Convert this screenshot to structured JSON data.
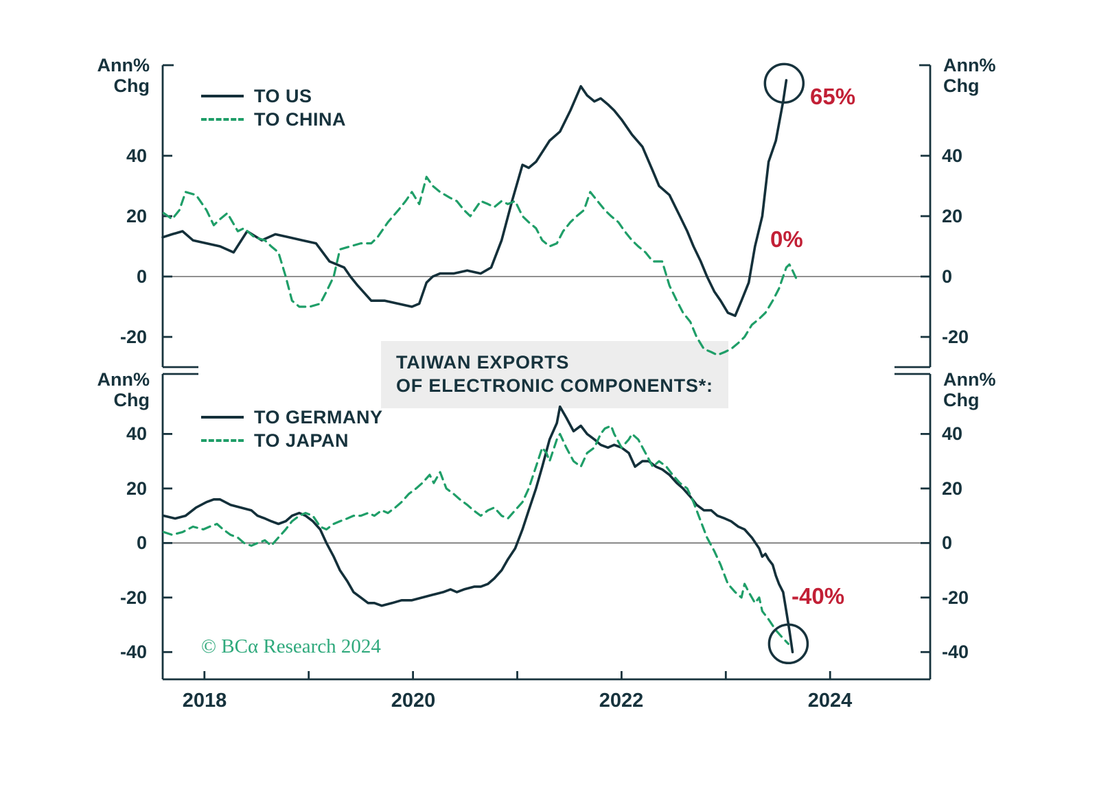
{
  "title": {
    "line1": "TAIWAN EXPORTS",
    "line2": "OF ELECTRONIC COMPONENTS*:"
  },
  "labels": {
    "ann": "Ann%",
    "chg": "Chg"
  },
  "copyright": "© BCα Research 2024",
  "colors": {
    "dark_line": "#14303a",
    "green_line": "#1f9e68",
    "red_annotation": "#c22036",
    "axis": "#17333d",
    "zero_line": "#6b6b6b",
    "title_bg": "#ededed",
    "copyright_green": "#2fa97c"
  },
  "x_axis": {
    "labels": [
      "2018",
      "2020",
      "2022",
      "2024"
    ],
    "label_years": [
      2018,
      2020,
      2022,
      2024
    ],
    "tick_years": [
      2018,
      2019,
      2020,
      2021,
      2022,
      2023,
      2024
    ]
  },
  "chart_data": [
    {
      "type": "line",
      "panel": "top",
      "ylabel": "Ann% Chg",
      "yticks": [
        40,
        20,
        0,
        -20
      ],
      "ylim": [
        -30,
        70
      ],
      "xlim": [
        2017.6,
        2024.96
      ],
      "grid": false,
      "legend_position": "top-left",
      "series": [
        {
          "name": "TO US",
          "style": "solid",
          "color": "#14303a",
          "x": [
            2017.6,
            2017.69,
            2017.79,
            2017.89,
            2018.02,
            2018.15,
            2018.28,
            2018.41,
            2018.55,
            2018.68,
            2018.81,
            2018.94,
            2019.07,
            2019.2,
            2019.34,
            2019.4,
            2019.47,
            2019.6,
            2019.73,
            2019.86,
            2019.99,
            2020.06,
            2020.13,
            2020.19,
            2020.26,
            2020.39,
            2020.52,
            2020.65,
            2020.75,
            2020.85,
            2020.95,
            2021.05,
            2021.11,
            2021.18,
            2021.31,
            2021.41,
            2021.51,
            2021.61,
            2021.67,
            2021.74,
            2021.8,
            2021.87,
            2021.93,
            2022.0,
            2022.1,
            2022.2,
            2022.3,
            2022.36,
            2022.46,
            2022.56,
            2022.63,
            2022.69,
            2022.76,
            2022.82,
            2022.89,
            2022.95,
            2023.02,
            2023.09,
            2023.15,
            2023.22,
            2023.28,
            2023.35,
            2023.41,
            2023.48,
            2023.55,
            2023.58
          ],
          "values": [
            13,
            14,
            15,
            12,
            11,
            10,
            8,
            15,
            12,
            14,
            13,
            12,
            11,
            5,
            3,
            0,
            -3,
            -8,
            -8,
            -9,
            -10,
            -9,
            -2,
            0,
            1,
            1,
            2,
            1,
            3,
            12,
            25,
            37,
            36,
            38,
            45,
            48,
            55,
            63,
            60,
            58,
            59,
            57,
            55,
            52,
            47,
            43,
            35,
            30,
            27,
            20,
            15,
            10,
            5,
            0,
            -5,
            -8,
            -12,
            -13,
            -8,
            -2,
            10,
            20,
            38,
            45,
            58,
            65
          ]
        },
        {
          "name": "TO CHINA",
          "style": "dashed",
          "color": "#1f9e68",
          "x": [
            2017.61,
            2017.69,
            2017.76,
            2017.82,
            2017.92,
            2018.02,
            2018.09,
            2018.15,
            2018.22,
            2018.32,
            2018.38,
            2018.48,
            2018.58,
            2018.64,
            2018.71,
            2018.78,
            2018.84,
            2018.91,
            2019.01,
            2019.11,
            2019.17,
            2019.24,
            2019.3,
            2019.4,
            2019.5,
            2019.6,
            2019.66,
            2019.76,
            2019.86,
            2019.93,
            2019.99,
            2020.06,
            2020.13,
            2020.19,
            2020.26,
            2020.36,
            2020.42,
            2020.49,
            2020.55,
            2020.65,
            2020.72,
            2020.78,
            2020.85,
            2020.91,
            2020.98,
            2021.05,
            2021.11,
            2021.18,
            2021.24,
            2021.31,
            2021.38,
            2021.44,
            2021.51,
            2021.57,
            2021.64,
            2021.7,
            2021.77,
            2021.84,
            2021.9,
            2021.97,
            2022.03,
            2022.1,
            2022.16,
            2022.23,
            2022.3,
            2022.39,
            2022.46,
            2022.53,
            2022.59,
            2022.66,
            2022.72,
            2022.79,
            2022.86,
            2022.92,
            2022.99,
            2023.05,
            2023.12,
            2023.18,
            2023.25,
            2023.32,
            2023.38,
            2023.45,
            2023.51,
            2023.55,
            2023.58,
            2023.61,
            2023.64,
            2023.68
          ],
          "values": [
            21,
            19,
            22,
            28,
            27,
            22,
            17,
            19,
            21,
            15,
            16,
            13,
            12,
            10,
            8,
            0,
            -8,
            -10,
            -10,
            -9,
            -5,
            0,
            9,
            10,
            11,
            11,
            13,
            18,
            22,
            25,
            28,
            24,
            33,
            30,
            28,
            26,
            25,
            22,
            20,
            25,
            24,
            23,
            25,
            24,
            25,
            20,
            18,
            16,
            12,
            10,
            11,
            15,
            18,
            20,
            22,
            28,
            25,
            22,
            20,
            18,
            15,
            12,
            10,
            8,
            5,
            5,
            -3,
            -8,
            -12,
            -15,
            -20,
            -24,
            -25,
            -26,
            -25,
            -24,
            -22,
            -20,
            -16,
            -14,
            -12,
            -8,
            -4,
            0,
            3,
            4,
            2,
            -1
          ]
        }
      ],
      "annotations": [
        {
          "text": "65%",
          "x": 2023.56,
          "y": 64,
          "circled": true
        },
        {
          "text": "0%",
          "x": 2023.45,
          "y": 12,
          "circled": false
        }
      ]
    },
    {
      "type": "line",
      "panel": "bottom",
      "ylabel": "Ann% Chg",
      "yticks": [
        40,
        20,
        0,
        -20,
        -40
      ],
      "ylim": [
        -50,
        62
      ],
      "xlim": [
        2017.6,
        2024.96
      ],
      "grid": false,
      "legend_position": "top-left",
      "series": [
        {
          "name": "TO GERMANY",
          "style": "solid",
          "color": "#14303a",
          "x": [
            2017.61,
            2017.72,
            2017.82,
            2017.92,
            2018.02,
            2018.09,
            2018.15,
            2018.25,
            2018.35,
            2018.45,
            2018.51,
            2018.58,
            2018.64,
            2018.71,
            2018.78,
            2018.84,
            2018.91,
            2018.97,
            2019.04,
            2019.11,
            2019.17,
            2019.24,
            2019.3,
            2019.37,
            2019.43,
            2019.5,
            2019.57,
            2019.63,
            2019.7,
            2019.8,
            2019.89,
            2019.99,
            2020.09,
            2020.19,
            2020.29,
            2020.36,
            2020.42,
            2020.49,
            2020.59,
            2020.65,
            2020.72,
            2020.78,
            2020.85,
            2020.91,
            2020.98,
            2021.05,
            2021.11,
            2021.18,
            2021.24,
            2021.31,
            2021.38,
            2021.41,
            2021.47,
            2021.54,
            2021.61,
            2021.67,
            2021.74,
            2021.8,
            2021.87,
            2021.93,
            2022.0,
            2022.07,
            2022.13,
            2022.2,
            2022.26,
            2022.33,
            2022.39,
            2022.46,
            2022.53,
            2022.59,
            2022.66,
            2022.72,
            2022.79,
            2022.86,
            2022.92,
            2022.99,
            2023.05,
            2023.12,
            2023.18,
            2023.25,
            2023.32,
            2023.35,
            2023.38,
            2023.41,
            2023.45,
            2023.48,
            2023.51,
            2023.55,
            2023.58,
            2023.61,
            2023.64
          ],
          "values": [
            10,
            9,
            10,
            13,
            15,
            16,
            16,
            14,
            13,
            12,
            10,
            9,
            8,
            7,
            8,
            10,
            11,
            10,
            8,
            5,
            0,
            -5,
            -10,
            -14,
            -18,
            -20,
            -22,
            -22,
            -23,
            -22,
            -21,
            -21,
            -20,
            -19,
            -18,
            -17,
            -18,
            -17,
            -16,
            -16,
            -15,
            -13,
            -10,
            -6,
            -2,
            5,
            12,
            20,
            28,
            38,
            44,
            50,
            46,
            41,
            43,
            40,
            38,
            36,
            35,
            36,
            35,
            33,
            28,
            30,
            30,
            28,
            27,
            25,
            22,
            20,
            17,
            14,
            12,
            12,
            10,
            9,
            8,
            6,
            5,
            2,
            -2,
            -5,
            -4,
            -6,
            -8,
            -12,
            -15,
            -18,
            -25,
            -32,
            -40
          ]
        },
        {
          "name": "TO JAPAN",
          "style": "dashed",
          "color": "#1f9e68",
          "x": [
            2017.61,
            2017.69,
            2017.79,
            2017.89,
            2017.99,
            2018.05,
            2018.12,
            2018.18,
            2018.25,
            2018.32,
            2018.38,
            2018.45,
            2018.51,
            2018.58,
            2018.64,
            2018.71,
            2018.78,
            2018.84,
            2018.91,
            2018.97,
            2019.04,
            2019.11,
            2019.17,
            2019.24,
            2019.3,
            2019.37,
            2019.43,
            2019.5,
            2019.57,
            2019.63,
            2019.7,
            2019.76,
            2019.83,
            2019.89,
            2019.96,
            2020.03,
            2020.09,
            2020.16,
            2020.2,
            2020.26,
            2020.32,
            2020.39,
            2020.45,
            2020.52,
            2020.58,
            2020.65,
            2020.72,
            2020.78,
            2020.85,
            2020.91,
            2020.98,
            2021.05,
            2021.11,
            2021.18,
            2021.24,
            2021.28,
            2021.31,
            2021.38,
            2021.41,
            2021.47,
            2021.54,
            2021.61,
            2021.67,
            2021.74,
            2021.8,
            2021.84,
            2021.9,
            2021.93,
            2022.0,
            2022.07,
            2022.1,
            2022.16,
            2022.23,
            2022.3,
            2022.36,
            2022.43,
            2022.49,
            2022.56,
            2022.63,
            2022.69,
            2022.76,
            2022.82,
            2022.89,
            2022.95,
            2023.02,
            2023.09,
            2023.15,
            2023.18,
            2023.22,
            2023.28,
            2023.32,
            2023.35,
            2023.41,
            2023.48,
            2023.55,
            2023.6
          ],
          "values": [
            4,
            3,
            4,
            6,
            5,
            6,
            7,
            5,
            3,
            2,
            0,
            -1,
            0,
            1,
            -1,
            2,
            5,
            8,
            10,
            11,
            10,
            6,
            5,
            7,
            8,
            9,
            10,
            10,
            11,
            10,
            12,
            11,
            13,
            15,
            18,
            20,
            22,
            25,
            22,
            26,
            20,
            18,
            16,
            14,
            12,
            10,
            12,
            13,
            10,
            9,
            12,
            15,
            20,
            28,
            35,
            33,
            30,
            38,
            40,
            35,
            30,
            28,
            33,
            35,
            40,
            42,
            43,
            40,
            35,
            38,
            40,
            38,
            33,
            28,
            30,
            28,
            25,
            22,
            20,
            15,
            8,
            2,
            -3,
            -8,
            -15,
            -18,
            -20,
            -15,
            -18,
            -22,
            -20,
            -25,
            -28,
            -32,
            -35,
            -37
          ]
        }
      ],
      "annotations": [
        {
          "text": "-40%",
          "x": 2023.6,
          "y": -37,
          "circled": true
        }
      ]
    }
  ]
}
